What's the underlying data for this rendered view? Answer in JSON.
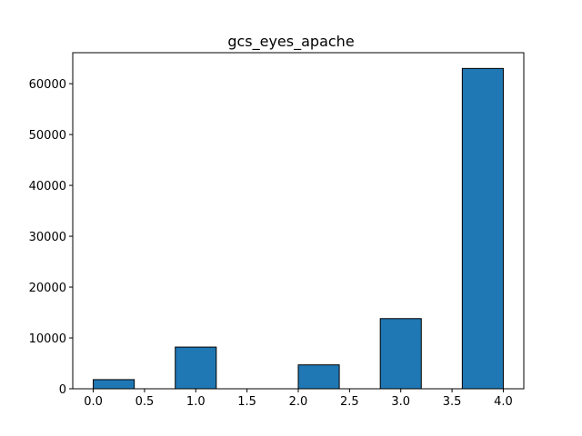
{
  "chart_data": {
    "type": "bar",
    "title": "gcs_eyes_apache",
    "xlabel": "",
    "ylabel": "",
    "xlim": [
      -0.2,
      4.2
    ],
    "ylim": [
      0,
      66100
    ],
    "bar_color": "#1f77b4",
    "edge_color": "#000000",
    "bins": [
      {
        "x0": 0.0,
        "x1": 0.4,
        "value": 1800
      },
      {
        "x0": 0.4,
        "x1": 0.8,
        "value": 0
      },
      {
        "x0": 0.8,
        "x1": 1.2,
        "value": 8200
      },
      {
        "x0": 1.2,
        "x1": 1.6,
        "value": 0
      },
      {
        "x0": 1.6,
        "x1": 2.0,
        "value": 0
      },
      {
        "x0": 2.0,
        "x1": 2.4,
        "value": 4700
      },
      {
        "x0": 2.4,
        "x1": 2.8,
        "value": 0
      },
      {
        "x0": 2.8,
        "x1": 3.2,
        "value": 13800
      },
      {
        "x0": 3.2,
        "x1": 3.6,
        "value": 0
      },
      {
        "x0": 3.6,
        "x1": 4.0,
        "value": 63000
      }
    ],
    "xticks": [
      {
        "value": 0.0,
        "label": "0.0"
      },
      {
        "value": 0.5,
        "label": "0.5"
      },
      {
        "value": 1.0,
        "label": "1.0"
      },
      {
        "value": 1.5,
        "label": "1.5"
      },
      {
        "value": 2.0,
        "label": "2.0"
      },
      {
        "value": 2.5,
        "label": "2.5"
      },
      {
        "value": 3.0,
        "label": "3.0"
      },
      {
        "value": 3.5,
        "label": "3.5"
      },
      {
        "value": 4.0,
        "label": "4.0"
      }
    ],
    "yticks": [
      {
        "value": 0,
        "label": "0"
      },
      {
        "value": 10000,
        "label": "10000"
      },
      {
        "value": 20000,
        "label": "20000"
      },
      {
        "value": 30000,
        "label": "30000"
      },
      {
        "value": 40000,
        "label": "40000"
      },
      {
        "value": 50000,
        "label": "50000"
      },
      {
        "value": 60000,
        "label": "60000"
      }
    ],
    "grid": false,
    "legend": "none"
  }
}
